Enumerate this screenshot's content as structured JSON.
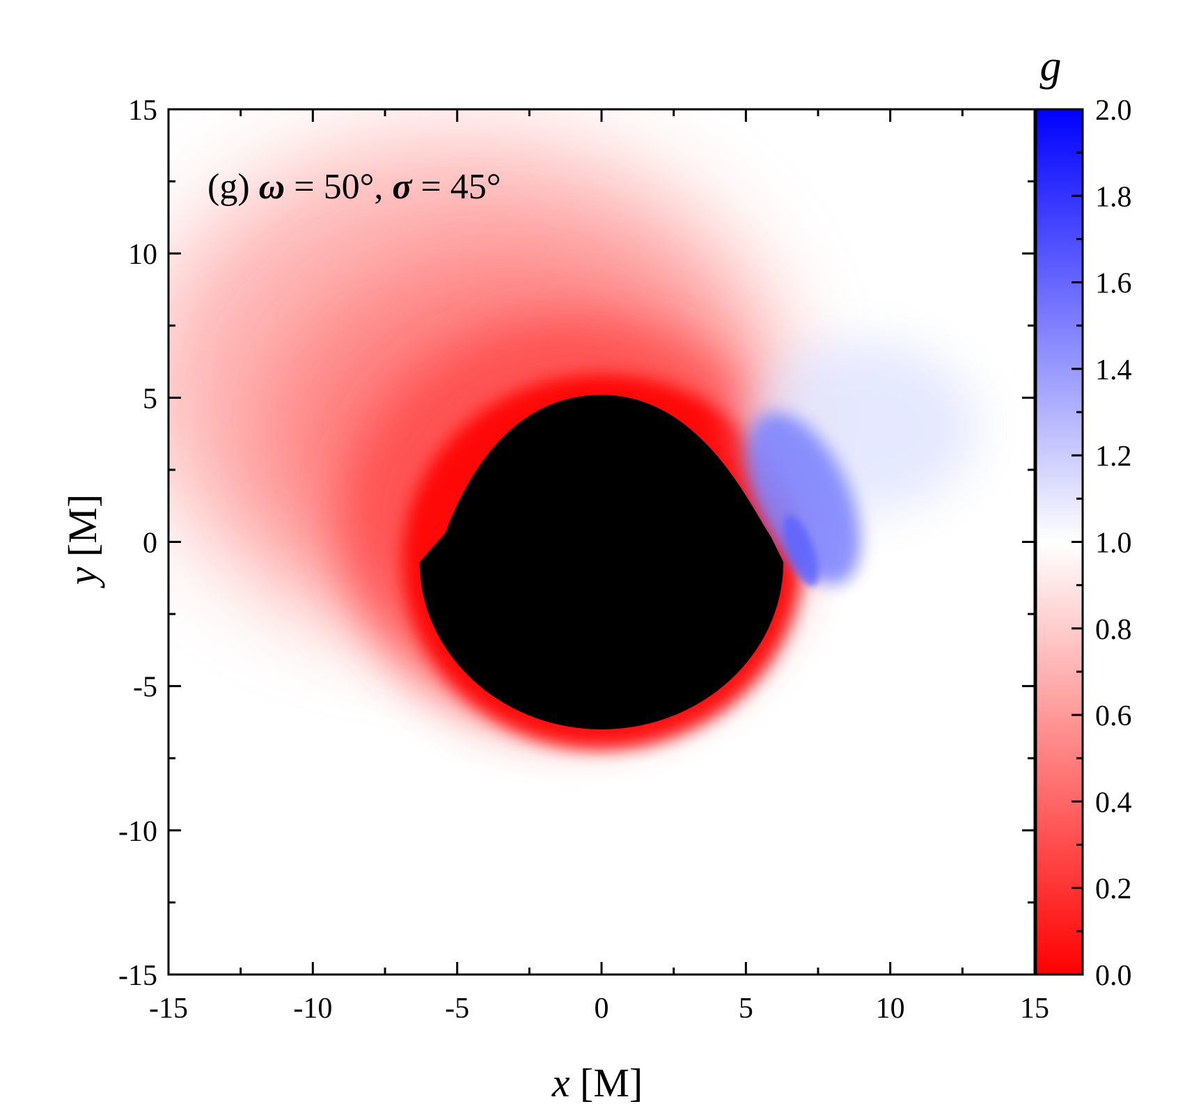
{
  "chart_data": {
    "type": "heatmap",
    "annotation": {
      "prefix": "(g) ",
      "sym1": "ω",
      "eq1": " = 50°, ",
      "sym2": "σ",
      "eq2": " = 45°"
    },
    "x_axis": {
      "symbol": "x",
      "unit": " [M]",
      "range": [
        -15,
        15
      ],
      "ticks": [
        -15,
        -10,
        -5,
        0,
        5,
        10,
        15
      ],
      "tick_labels": [
        "-15",
        "-10",
        "-5",
        "0",
        "5",
        "10",
        "15"
      ]
    },
    "y_axis": {
      "symbol": "y",
      "unit": " [M]",
      "range": [
        -15,
        15
      ],
      "ticks": [
        -15,
        -10,
        -5,
        0,
        5,
        10,
        15
      ],
      "tick_labels": [
        "-15",
        "-10",
        "-5",
        "0",
        "5",
        "10",
        "15"
      ]
    },
    "colorbar": {
      "symbol": "g",
      "range": [
        0.0,
        2.0
      ],
      "ticks": [
        0.0,
        0.2,
        0.4,
        0.6,
        0.8,
        1.0,
        1.2,
        1.4,
        1.6,
        1.8,
        2.0
      ],
      "tick_labels": [
        "0.0",
        "0.2",
        "0.4",
        "0.6",
        "0.8",
        "1.0",
        "1.2",
        "1.4",
        "1.6",
        "1.8",
        "2.0"
      ],
      "colors": {
        "low": "#ff0000",
        "mid": "#ffffff",
        "high": "#0000ff"
      }
    },
    "shadow": {
      "color": "#000000",
      "center": [
        0.0,
        -0.7
      ],
      "radius_x": 6.3,
      "radius_y": 5.8,
      "top_y": 5.1,
      "bottom_y": -6.5
    },
    "field_features": [
      {
        "name": "redshift-halo",
        "g_min": 0.0,
        "region": "upper-left and around shadow"
      },
      {
        "name": "blueshift-lobe",
        "g_max": 1.3,
        "center": [
          7.0,
          1.5
        ]
      }
    ],
    "grid": false
  }
}
